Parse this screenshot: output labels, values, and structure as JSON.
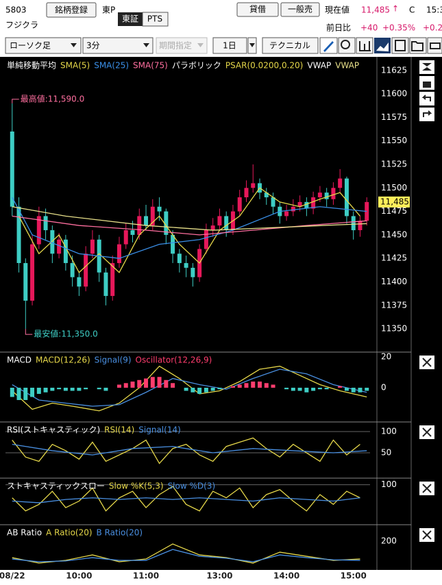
{
  "header": {
    "code": "5803",
    "register": "銘柄登録",
    "market": "東P",
    "name": "フジクラ",
    "exchange_tse": "東証",
    "exchange_pts": "PTS",
    "margin": "貸借",
    "general_sell": "一般売",
    "price_label": "現在値",
    "price": "11,485",
    "arrow": "↑",
    "price_flag": "C",
    "time": "15:3",
    "change_label": "前日比",
    "change": "+40",
    "change_pct": "+0.35%",
    "change_extra": "+0.2"
  },
  "toolbar": {
    "chart_kind": "ローソク足",
    "interval": "3分",
    "period": "期間指定",
    "span": "1日",
    "technical": "テクニカル"
  },
  "chart_data": [
    {
      "type": "candlestick",
      "indicator_titles": [
        "単純移動平均",
        "パラボリック",
        "VWAP"
      ],
      "psar_label": "PSAR(0.0200,0.20)",
      "psar_color": "#e6d84a",
      "up_color": "#e6185a",
      "down_color": "#3ecdc4",
      "open": [
        11560,
        11480,
        11420,
        11380,
        11440,
        11470,
        11455,
        11430,
        11445,
        11420,
        11405,
        11395,
        11430,
        11445,
        11410,
        11385,
        11420,
        11440,
        11455,
        11450,
        11470,
        11460,
        11480,
        11475,
        11450,
        11430,
        11420,
        11415,
        11405,
        11435,
        11455,
        11460,
        11470,
        11455,
        11475,
        11490,
        11500,
        11505,
        11495,
        11490,
        11480,
        11470,
        11475,
        11480,
        11485,
        11478,
        11490,
        11495,
        11488,
        11500,
        11510,
        11470,
        11455,
        11465
      ],
      "high": [
        11590,
        11490,
        11425,
        11450,
        11480,
        11478,
        11460,
        11452,
        11450,
        11428,
        11410,
        11438,
        11455,
        11450,
        11415,
        11428,
        11448,
        11462,
        11465,
        11478,
        11482,
        11488,
        11490,
        11478,
        11455,
        11435,
        11428,
        11420,
        11440,
        11462,
        11468,
        11478,
        11475,
        11482,
        11498,
        11508,
        11525,
        11510,
        11500,
        11495,
        11485,
        11482,
        11488,
        11492,
        11490,
        11496,
        11502,
        11500,
        11506,
        11520,
        11512,
        11475,
        11470,
        11490
      ],
      "low": [
        11470,
        11410,
        11350,
        11375,
        11435,
        11445,
        11420,
        11425,
        11412,
        11395,
        11385,
        11390,
        11425,
        11400,
        11375,
        11380,
        11415,
        11435,
        11442,
        11445,
        11455,
        11455,
        11465,
        11440,
        11420,
        11410,
        11405,
        11395,
        11400,
        11430,
        11448,
        11455,
        11448,
        11450,
        11470,
        11485,
        11495,
        11488,
        11482,
        11472,
        11462,
        11465,
        11470,
        11475,
        11470,
        11472,
        11485,
        11480,
        11482,
        11495,
        11462,
        11445,
        11448,
        11460
      ],
      "close": [
        11480,
        11420,
        11380,
        11440,
        11470,
        11455,
        11430,
        11445,
        11420,
        11405,
        11395,
        11430,
        11445,
        11410,
        11385,
        11420,
        11440,
        11455,
        11450,
        11470,
        11460,
        11480,
        11475,
        11450,
        11430,
        11420,
        11415,
        11405,
        11435,
        11455,
        11460,
        11470,
        11455,
        11475,
        11490,
        11500,
        11505,
        11495,
        11490,
        11480,
        11470,
        11475,
        11480,
        11485,
        11478,
        11490,
        11495,
        11488,
        11500,
        11510,
        11470,
        11455,
        11465,
        11485
      ],
      "series": [
        {
          "name": "SMA(5)",
          "color": "#e6d84a",
          "x": [
            1,
            4,
            7,
            10,
            13,
            16,
            19,
            22,
            25,
            28,
            31,
            34,
            37,
            40,
            43,
            46,
            49,
            52
          ],
          "values": [
            11470,
            11430,
            11450,
            11410,
            11430,
            11410,
            11450,
            11470,
            11440,
            11420,
            11455,
            11470,
            11500,
            11485,
            11480,
            11488,
            11495,
            11470
          ]
        },
        {
          "name": "SMA(25)",
          "color": "#3a8fe8",
          "x": [
            0,
            3,
            10,
            16,
            22,
            28,
            33,
            40,
            46,
            53
          ],
          "values": [
            11490,
            11450,
            11430,
            11425,
            11440,
            11445,
            11455,
            11475,
            11480,
            11475
          ]
        },
        {
          "name": "SMA(75)",
          "color": "#ff6f9f",
          "x": [
            0,
            10,
            20,
            28,
            36,
            44,
            53
          ],
          "values": [
            11470,
            11460,
            11455,
            11450,
            11455,
            11460,
            11465
          ]
        },
        {
          "name": "VWAP",
          "color": "#e8e08a",
          "x": [
            0,
            8,
            20,
            30,
            40,
            53
          ],
          "values": [
            11480,
            11470,
            11460,
            11455,
            11458,
            11462
          ]
        }
      ],
      "annotations": [
        {
          "text": "最高値:11,590.0",
          "x": 0,
          "y": 11590
        },
        {
          "text": "最安値:11,350.0",
          "x": 2,
          "y": 11350
        }
      ],
      "last_price": {
        "value": 11485,
        "label": "11,485.0"
      },
      "xlim": [
        -1,
        54
      ],
      "xticks": [
        {
          "value": 0,
          "label": "08/22"
        },
        {
          "value": 10,
          "label": "10:00"
        },
        {
          "value": 20,
          "label": "11:00"
        },
        {
          "value": 31,
          "label": "13:00"
        },
        {
          "value": 41,
          "label": "14:00"
        },
        {
          "value": 51,
          "label": "15:00"
        }
      ],
      "ylim": [
        11326,
        11638
      ],
      "yticks": [
        11350,
        11375,
        11400,
        11425,
        11450,
        11475,
        11500,
        11525,
        11550,
        11575,
        11600,
        11625
      ],
      "grid": false
    },
    {
      "type": "line",
      "title": "MACD",
      "ylim": [
        -21.8,
        22.7
      ],
      "yticks": [
        0,
        20
      ],
      "grid": false,
      "series": [
        {
          "name": "MACD(12,26)",
          "color": "#e6d84a",
          "x": [
            0,
            3,
            6,
            9,
            13,
            16,
            19,
            22,
            25,
            28,
            31,
            34,
            37,
            40,
            43,
            46,
            49,
            53
          ],
          "values": [
            -2,
            -14,
            -10,
            -12,
            -15,
            -10,
            0,
            14,
            6,
            -4,
            -2,
            4,
            12,
            14,
            8,
            2,
            -2,
            -6
          ]
        },
        {
          "name": "Signal(9)",
          "color": "#4a90e2",
          "x": [
            0,
            4,
            8,
            12,
            16,
            20,
            24,
            28,
            32,
            36,
            40,
            44,
            48,
            53
          ],
          "values": [
            2,
            -8,
            -10,
            -12,
            -11,
            -3,
            6,
            2,
            -1,
            6,
            12,
            9,
            2,
            -3
          ]
        },
        {
          "name": "Oscillator(12,26,9)",
          "type": "bar",
          "color": "#ff3d6e",
          "neg_color": "#3ecdc4",
          "values": [
            -6,
            -8,
            -8,
            -6,
            -4,
            -3,
            -2,
            -1,
            -2,
            -2,
            -2,
            -1,
            0,
            -1,
            -2,
            0,
            2,
            3,
            4,
            5,
            6,
            7,
            7,
            5,
            3,
            0,
            -2,
            -3,
            -4,
            -3,
            -2,
            -1,
            0,
            1,
            2,
            3,
            4,
            4,
            3,
            2,
            0,
            -1,
            -2,
            -2,
            -3,
            -2,
            -1,
            -1,
            0,
            1,
            -2,
            -3,
            -3,
            -2
          ]
        }
      ]
    },
    {
      "type": "line",
      "title": "RSI(ストキャスティック)",
      "ylim": [
        -8,
        121
      ],
      "yticks": [
        50,
        100
      ],
      "grid": true,
      "series": [
        {
          "name": "RSI(14)",
          "color": "#e6d84a",
          "x": [
            0,
            2,
            4,
            6,
            8,
            10,
            12,
            14,
            16,
            18,
            20,
            22,
            24,
            26,
            28,
            30,
            32,
            34,
            36,
            38,
            40,
            42,
            44,
            46,
            48,
            50,
            52
          ],
          "values": [
            80,
            40,
            30,
            70,
            55,
            35,
            75,
            30,
            45,
            60,
            80,
            25,
            60,
            70,
            45,
            30,
            65,
            75,
            85,
            60,
            40,
            70,
            50,
            30,
            80,
            45,
            70
          ]
        },
        {
          "name": "Signal(14)",
          "color": "#4a90e2",
          "x": [
            0,
            6,
            12,
            18,
            24,
            30,
            36,
            42,
            48,
            53
          ],
          "values": [
            70,
            55,
            45,
            60,
            65,
            50,
            60,
            55,
            50,
            55
          ]
        }
      ]
    },
    {
      "type": "line",
      "title": "ストキャスティックスロー",
      "ylim": [
        -20,
        118
      ],
      "yticks": [
        100
      ],
      "grid": true,
      "series": [
        {
          "name": "Slow %K(5,3)",
          "color": "#e6d84a",
          "x": [
            0,
            2,
            4,
            6,
            8,
            10,
            12,
            14,
            16,
            18,
            20,
            22,
            24,
            26,
            28,
            30,
            32,
            34,
            36,
            38,
            40,
            42,
            44,
            46,
            48,
            50,
            52
          ],
          "values": [
            60,
            20,
            40,
            80,
            30,
            50,
            90,
            20,
            60,
            80,
            30,
            70,
            95,
            40,
            20,
            80,
            60,
            90,
            30,
            70,
            85,
            50,
            20,
            70,
            40,
            80,
            60
          ]
        },
        {
          "name": "Slow %D(3)",
          "color": "#4a90e2",
          "x": [
            0,
            4,
            8,
            12,
            16,
            20,
            24,
            28,
            32,
            36,
            40,
            44,
            48,
            52
          ],
          "values": [
            50,
            45,
            55,
            60,
            55,
            60,
            55,
            60,
            55,
            50,
            60,
            55,
            50,
            60
          ]
        }
      ]
    },
    {
      "type": "line",
      "title": "AB Ratio",
      "ylim": [
        95,
        258
      ],
      "yticks": [
        200
      ],
      "grid": false,
      "series": [
        {
          "name": "A Ratio(20)",
          "color": "#e6d84a",
          "x": [
            0,
            4,
            8,
            12,
            16,
            20,
            24,
            28,
            32,
            36,
            40,
            44,
            48,
            52
          ],
          "values": [
            140,
            120,
            130,
            150,
            125,
            135,
            190,
            150,
            140,
            120,
            160,
            145,
            130,
            135
          ]
        },
        {
          "name": "B Ratio(20)",
          "color": "#4a90e2",
          "x": [
            0,
            4,
            8,
            12,
            16,
            20,
            24,
            28,
            32,
            36,
            40,
            44,
            48,
            52
          ],
          "values": [
            135,
            125,
            128,
            140,
            130,
            130,
            170,
            145,
            138,
            125,
            150,
            140,
            132,
            130
          ]
        }
      ]
    }
  ]
}
